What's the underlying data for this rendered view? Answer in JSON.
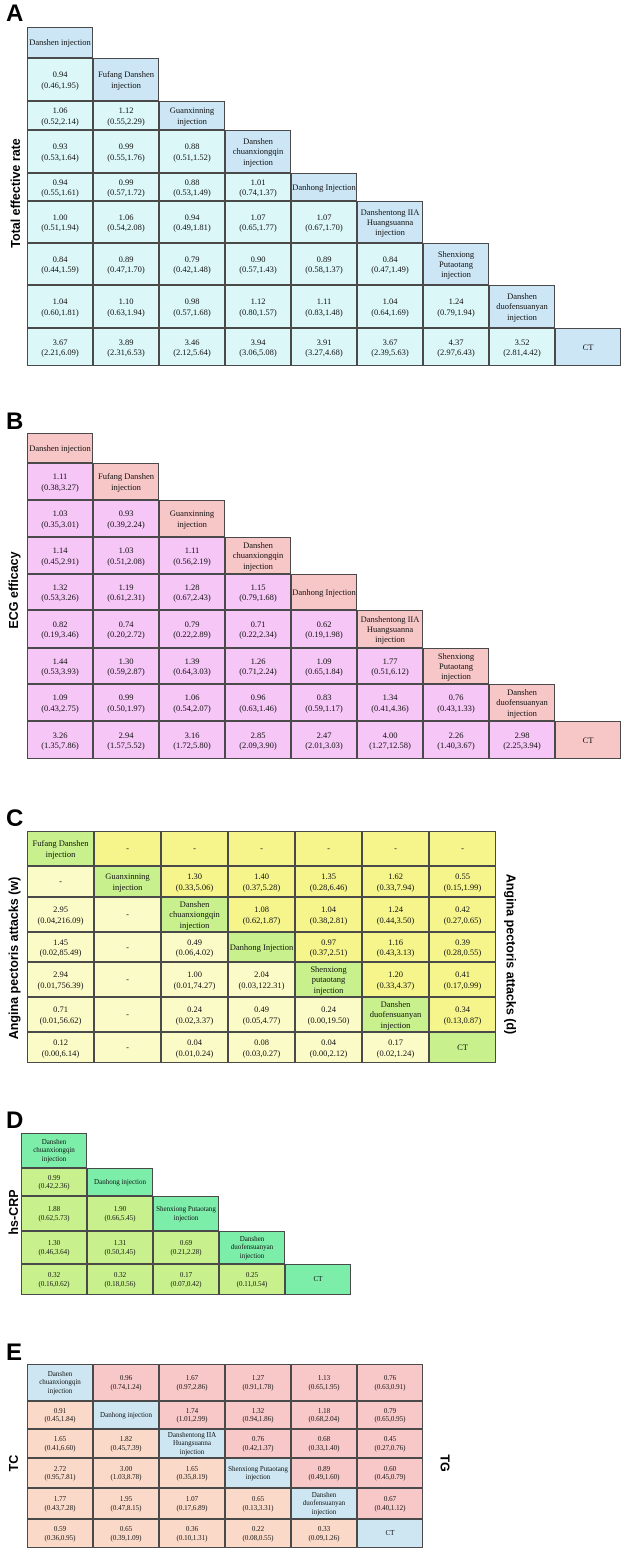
{
  "panels": [
    {
      "letter": "A",
      "label_left": "Total effective rate",
      "label_right": "",
      "colors": {
        "diag": "#cce6f5",
        "cell": "#dcf7f8",
        "border": "#4a4a4a"
      },
      "rows": [
        [
          {
            "t": "Danshen injection",
            "d": 1
          }
        ],
        [
          {
            "t": "0.94|(0.46,1.95)"
          },
          {
            "t": "Fufang Danshen injection",
            "d": 1
          }
        ],
        [
          {
            "t": "1.06|(0.52,2.14)"
          },
          {
            "t": "1.12|(0.55,2.29)"
          },
          {
            "t": "Guanxinning injection",
            "d": 1
          }
        ],
        [
          {
            "t": "0.93|(0.53,1.64)"
          },
          {
            "t": "0.99|(0.55,1.76)"
          },
          {
            "t": "0.88|(0.51,1.52)"
          },
          {
            "t": "Danshen chuanxiongqin injection",
            "d": 1
          }
        ],
        [
          {
            "t": "0.94|(0.55,1.61)"
          },
          {
            "t": "0.99|(0.57,1.72)"
          },
          {
            "t": "0.88|(0.53,1.49)"
          },
          {
            "t": "1.01|(0.74,1.37)"
          },
          {
            "t": "Danhong Injection",
            "d": 1
          }
        ],
        [
          {
            "t": "1.00|(0.51,1.94)"
          },
          {
            "t": "1.06|(0.54,2.08)"
          },
          {
            "t": "0.94|(0.49,1.81)"
          },
          {
            "t": "1.07|(0.65,1.77)"
          },
          {
            "t": "1.07|(0.67,1.70)"
          },
          {
            "t": "Danshentong IIA Huangsuanna injection",
            "d": 1
          }
        ],
        [
          {
            "t": "0.84|(0.44,1.59)"
          },
          {
            "t": "0.89|(0.47,1.70)"
          },
          {
            "t": "0.79|(0.42,1.48)"
          },
          {
            "t": "0.90|(0.57,1.43)"
          },
          {
            "t": "0.89|(0.58,1.37)"
          },
          {
            "t": "0.84|(0.47,1.49)"
          },
          {
            "t": "Shenxiong Putaotang injection",
            "d": 1
          }
        ],
        [
          {
            "t": "1.04|(0.60,1.81)"
          },
          {
            "t": "1.10|(0.63,1.94)"
          },
          {
            "t": "0.98|(0.57,1.68)"
          },
          {
            "t": "1.12|(0.80,1.57)"
          },
          {
            "t": "1.11|(0.83,1.48)"
          },
          {
            "t": "1.04|(0.64,1.69)"
          },
          {
            "t": "1.24|(0.79,1.94)"
          },
          {
            "t": "Danshen duofensuanyan injection",
            "d": 1
          }
        ],
        [
          {
            "t": "3.67|(2.21,6.09)"
          },
          {
            "t": "3.89|(2.31,6.53)"
          },
          {
            "t": "3.46|(2.12,5.64)"
          },
          {
            "t": "3.94|(3.06,5.08)"
          },
          {
            "t": "3.91|(3.27,4.68)"
          },
          {
            "t": "3.67|(2.39,5.63)"
          },
          {
            "t": "4.37|(2.97,6.43)"
          },
          {
            "t": "3.52|(2.81,4.42)"
          },
          {
            "t": "CT",
            "d": 1
          }
        ]
      ]
    },
    {
      "letter": "B",
      "label_left": "ECG efficacy",
      "label_right": "",
      "colors": {
        "diag": "#f7c6c6",
        "cell": "#f6c6f6",
        "border": "#4a4a4a"
      },
      "rows": [
        [
          {
            "t": "Danshen injection",
            "d": 1
          }
        ],
        [
          {
            "t": "1.11|(0.38,3.27)"
          },
          {
            "t": "Fufang Danshen injection",
            "d": 1
          }
        ],
        [
          {
            "t": "1.03|(0.35,3.01)"
          },
          {
            "t": "0.93|(0.39,2.24)"
          },
          {
            "t": "Guanxinning injection",
            "d": 1
          }
        ],
        [
          {
            "t": "1.14|(0.45,2.91)"
          },
          {
            "t": "1.03|(0.51,2.08)"
          },
          {
            "t": "1.11|(0.56,2.19)"
          },
          {
            "t": "Danshen chuanxiongqin injection",
            "d": 1
          }
        ],
        [
          {
            "t": "1.32|(0.53,3.26)"
          },
          {
            "t": "1.19|(0.61,2.31)"
          },
          {
            "t": "1.28|(0.67,2.43)"
          },
          {
            "t": "1.15|(0.79,1.68)"
          },
          {
            "t": "Danhong Injection",
            "d": 1
          }
        ],
        [
          {
            "t": "0.82|(0.19,3.46)"
          },
          {
            "t": "0.74|(0.20,2.72)"
          },
          {
            "t": "0.79|(0.22,2.89)"
          },
          {
            "t": "0.71|(0.22,2.34)"
          },
          {
            "t": "0.62|(0.19,1.98)"
          },
          {
            "t": "Danshentong IIA Huangsuanna injection",
            "d": 1
          }
        ],
        [
          {
            "t": "1.44|(0.53,3.93)"
          },
          {
            "t": "1.30|(0.59,2.87)"
          },
          {
            "t": "1.39|(0.64,3.03)"
          },
          {
            "t": "1.26|(0.71,2.24)"
          },
          {
            "t": "1.09|(0.65,1.84)"
          },
          {
            "t": "1.77|(0.51,6.12)"
          },
          {
            "t": "Shenxiong Putaotang injection",
            "d": 1
          }
        ],
        [
          {
            "t": "1.09|(0.43,2.75)"
          },
          {
            "t": "0.99|(0.50,1.97)"
          },
          {
            "t": "1.06|(0.54,2.07)"
          },
          {
            "t": "0.96|(0.63,1.46)"
          },
          {
            "t": "0.83|(0.59,1.17)"
          },
          {
            "t": "1.34|(0.41,4.36)"
          },
          {
            "t": "0.76|(0.43,1.33)"
          },
          {
            "t": "Danshen duofensuanyan injection",
            "d": 1
          }
        ],
        [
          {
            "t": "3.26|(1.35,7.86)"
          },
          {
            "t": "2.94|(1.57,5.52)"
          },
          {
            "t": "3.16|(1.72,5.80)"
          },
          {
            "t": "2.85|(2.09,3.90)"
          },
          {
            "t": "2.47|(2.01,3.03)"
          },
          {
            "t": "4.00|(1.27,12.58)"
          },
          {
            "t": "2.26|(1.40,3.67)"
          },
          {
            "t": "2.98|(2.25,3.94)"
          },
          {
            "t": "CT",
            "d": 1
          }
        ]
      ]
    },
    {
      "letter": "C",
      "label_left": "Angina pectoris attacks (w)",
      "label_right": "Angina pectoris attacks (d)",
      "colors": {
        "diag": "#c8f08c",
        "cell": "#fbfbc8",
        "upper": "#f5f58c",
        "border": "#4a4a4a"
      },
      "rows": [
        [
          {
            "t": "Fufang Danshen injection",
            "d": 1
          },
          {
            "t": "-",
            "u": 1
          },
          {
            "t": "-",
            "u": 1
          },
          {
            "t": "-",
            "u": 1
          },
          {
            "t": "-",
            "u": 1
          },
          {
            "t": "-",
            "u": 1
          },
          {
            "t": "-",
            "u": 1
          }
        ],
        [
          {
            "t": "-"
          },
          {
            "t": "Guanxinning injection",
            "d": 1
          },
          {
            "t": "1.30|(0.33,5.06)",
            "u": 1
          },
          {
            "t": "1.40|(0.37,5.28)",
            "u": 1
          },
          {
            "t": "1.35|(0.28,6.46)",
            "u": 1
          },
          {
            "t": "1.62|(0.33,7.94)",
            "u": 1
          },
          {
            "t": "0.55|(0.15,1.99)",
            "u": 1
          }
        ],
        [
          {
            "t": "2.95|(0.04,216.09)"
          },
          {
            "t": "-"
          },
          {
            "t": "Danshen chuanxiongqin injection",
            "d": 1
          },
          {
            "t": "1.08|(0.62,1.87)",
            "u": 1
          },
          {
            "t": "1.04|(0.38,2.81)",
            "u": 1
          },
          {
            "t": "1.24|(0.44,3.50)",
            "u": 1
          },
          {
            "t": "0.42|(0.27,0.65)",
            "u": 1
          }
        ],
        [
          {
            "t": "1.45|(0.02,85.49)"
          },
          {
            "t": "-"
          },
          {
            "t": "0.49|(0.06,4.02)"
          },
          {
            "t": "Danhong Injection",
            "d": 1
          },
          {
            "t": "0.97|(0.37,2.51)",
            "u": 1
          },
          {
            "t": "1.16|(0.43,3.13)",
            "u": 1
          },
          {
            "t": "0.39|(0.28,0.55)",
            "u": 1
          }
        ],
        [
          {
            "t": "2.94|(0.01,756.39)"
          },
          {
            "t": "-"
          },
          {
            "t": "1.00|(0.01,74.27)"
          },
          {
            "t": "2.04|(0.03,122.31)"
          },
          {
            "t": "Shenxiong putaotang injection",
            "d": 1
          },
          {
            "t": "1.20|(0.33,4.37)",
            "u": 1
          },
          {
            "t": "0.41|(0.17,0.99)",
            "u": 1
          }
        ],
        [
          {
            "t": "0.71|(0.01,56.62)"
          },
          {
            "t": "-"
          },
          {
            "t": "0.24|(0.02,3.37)"
          },
          {
            "t": "0.49|(0.05,4.77)"
          },
          {
            "t": "0.24|(0.00,19.50)"
          },
          {
            "t": "Danshen duofensuanyan injection",
            "d": 1
          },
          {
            "t": "0.34|(0.13,0.87)",
            "u": 1
          }
        ],
        [
          {
            "t": "0.12|(0.00,6.14)"
          },
          {
            "t": "-"
          },
          {
            "t": "0.04|(0.01,0.24)"
          },
          {
            "t": "0.08|(0.03,0.27)"
          },
          {
            "t": "0.04|(0.00,2.12)"
          },
          {
            "t": "0.17|(0.02,1.24)"
          },
          {
            "t": "CT",
            "d": 1
          }
        ]
      ]
    },
    {
      "letter": "D",
      "label_left": "hs-CRP",
      "label_right": "",
      "colors": {
        "diag": "#7deeaa",
        "cell": "#c8f08c",
        "border": "#4a4a4a"
      },
      "rows": [
        [
          {
            "t": "Danshen chuanxiongqin injection",
            "d": 1
          }
        ],
        [
          {
            "t": "0.99|(0.42,2.36)"
          },
          {
            "t": "Danhong injection",
            "d": 1
          }
        ],
        [
          {
            "t": "1.88|(0.62,5.73)"
          },
          {
            "t": "1.90|(0.66,5.45)"
          },
          {
            "t": "Shenxiong Putaotang injection",
            "d": 1
          }
        ],
        [
          {
            "t": "1.30|(0.46,3.64)"
          },
          {
            "t": "1.31|(0.50,3.45)"
          },
          {
            "t": "0.69|(0.21,2.28)"
          },
          {
            "t": "Danshen duofensuanyan injection",
            "d": 1
          }
        ],
        [
          {
            "t": "0.32|(0.16,0.62)"
          },
          {
            "t": "0.32|(0.18,0.56)"
          },
          {
            "t": "0.17|(0.07,0.42)"
          },
          {
            "t": "0.25|(0.11,0.54)"
          },
          {
            "t": "CT",
            "d": 1
          }
        ]
      ]
    },
    {
      "letter": "E",
      "label_left": "TC",
      "label_right": "TG",
      "colors": {
        "diag": "#cde6f2",
        "cell": "#fad9c8",
        "upper": "#f8c8c8",
        "border": "#4a4a4a"
      },
      "rows": [
        [
          {
            "t": "Danshen chuanxiongqin injection",
            "d": 1
          },
          {
            "t": "0.96|(0.74,1.24)",
            "u": 1
          },
          {
            "t": "1.67|(0.97,2.86)",
            "u": 1
          },
          {
            "t": "1.27|(0.91,1.78)",
            "u": 1
          },
          {
            "t": "1.13|(0.65,1.95)",
            "u": 1
          },
          {
            "t": "0.76|(0.63,0.91)",
            "u": 1
          }
        ],
        [
          {
            "t": "0.91|(0.45,1.84)"
          },
          {
            "t": "Danhong injection",
            "d": 1
          },
          {
            "t": "1.74|(1.01,2.99)",
            "u": 1
          },
          {
            "t": "1.32|(0.94,1.86)",
            "u": 1
          },
          {
            "t": "1.18|(0.68,2.04)",
            "u": 1
          },
          {
            "t": "0.79|(0.65,0.95)",
            "u": 1
          }
        ],
        [
          {
            "t": "1.65|(0.41,6.60)"
          },
          {
            "t": "1.82|(0.45,7.39)"
          },
          {
            "t": "Danshentong IIA Huangsuanna injection",
            "d": 1
          },
          {
            "t": "0.76|(0.42,1.37)",
            "u": 1
          },
          {
            "t": "0.68|(0.33,1.40)",
            "u": 1
          },
          {
            "t": "0.45|(0.27,0.76)",
            "u": 1
          }
        ],
        [
          {
            "t": "2.72|(0.95,7.81)"
          },
          {
            "t": "3.00|(1.03,8.78)"
          },
          {
            "t": "1.65|(0.35,8.19)"
          },
          {
            "t": "Shenxiong Putaotang injection",
            "d": 1
          },
          {
            "t": "0.89|(0.49,1.60)",
            "u": 1
          },
          {
            "t": "0.60|(0.45,0.79)",
            "u": 1
          }
        ],
        [
          {
            "t": "1.77|(0.43,7.28)"
          },
          {
            "t": "1.95|(0.47,8.15)"
          },
          {
            "t": "1.07|(0.17,6.89)"
          },
          {
            "t": "0.65|(0.13,3.31)"
          },
          {
            "t": "Danshen duofensuanyan injection",
            "d": 1
          },
          {
            "t": "0.67|(0.40,1.12)",
            "u": 1
          }
        ],
        [
          {
            "t": "0.59|(0.36,0.95)"
          },
          {
            "t": "0.65|(0.39,1.09)"
          },
          {
            "t": "0.36|(0.10,1.31)"
          },
          {
            "t": "0.22|(0.08,0.55)"
          },
          {
            "t": "0.33|(0.09,1.26)"
          },
          {
            "t": "CT",
            "d": 1
          }
        ]
      ]
    }
  ]
}
